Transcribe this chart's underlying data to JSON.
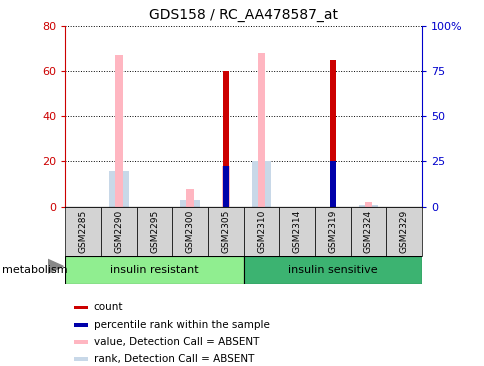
{
  "title": "GDS158 / RC_AA478587_at",
  "samples": [
    "GSM2285",
    "GSM2290",
    "GSM2295",
    "GSM2300",
    "GSM2305",
    "GSM2310",
    "GSM2314",
    "GSM2319",
    "GSM2324",
    "GSM2329"
  ],
  "groups": [
    {
      "label": "insulin resistant",
      "color": "#90EE90",
      "start": 0,
      "end": 4
    },
    {
      "label": "insulin sensitive",
      "color": "#3CB371",
      "start": 5,
      "end": 9
    }
  ],
  "count_values": [
    0,
    0,
    0,
    0,
    60,
    0,
    0,
    65,
    0,
    0
  ],
  "percentile_rank_values": [
    0,
    0,
    0,
    0,
    18,
    0,
    0,
    20,
    0,
    0
  ],
  "absent_value_values": [
    0,
    67,
    0,
    8,
    18,
    68,
    0,
    0,
    2,
    0
  ],
  "absent_rank_values": [
    0,
    16,
    0,
    3,
    0,
    20,
    0,
    0,
    1,
    0
  ],
  "ylim_left": [
    0,
    80
  ],
  "ylim_right": [
    0,
    100
  ],
  "yticks_left": [
    0,
    20,
    40,
    60,
    80
  ],
  "yticks_right": [
    0,
    25,
    50,
    75,
    100
  ],
  "ytick_labels_right": [
    "0",
    "25",
    "50",
    "75",
    "100%"
  ],
  "colors": {
    "count": "#CC0000",
    "percentile_rank": "#0000AA",
    "absent_value": "#FFB6C1",
    "absent_rank": "#C8D8E8",
    "axis_left": "#CC0000",
    "axis_right": "#0000CC"
  },
  "group_label": "metabolism",
  "legend_items": [
    {
      "color": "#CC0000",
      "label": "count"
    },
    {
      "color": "#0000AA",
      "label": "percentile rank within the sample"
    },
    {
      "color": "#FFB6C1",
      "label": "value, Detection Call = ABSENT"
    },
    {
      "color": "#C8D8E8",
      "label": "rank, Detection Call = ABSENT"
    }
  ]
}
